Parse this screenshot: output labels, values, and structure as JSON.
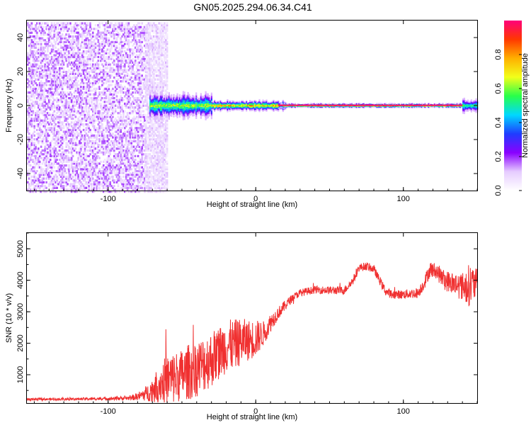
{
  "title": "GN05.2025.294.06.34.C41",
  "chart_data": [
    {
      "type": "heatmap",
      "xlabel": "Height of straight line (km)",
      "ylabel": "Frequency (Hz)",
      "xlim": [
        -155,
        150
      ],
      "ylim": [
        -50,
        50
      ],
      "x_ticks": [
        "-100",
        "0",
        "100"
      ],
      "y_ticks": [
        "-40",
        "-20",
        "0",
        "20",
        "40"
      ],
      "colorbar": {
        "label": "Normalized spectral amplitude",
        "range": [
          0,
          1
        ],
        "ticks": [
          "0.0",
          "0.2",
          "0.4",
          "0.6",
          "0.8"
        ],
        "colors": [
          "#ffffff",
          "#e6ccff",
          "#8a00ff",
          "#1f3cff",
          "#00d8ff",
          "#28ff4a",
          "#f2ff1a",
          "#ffb000",
          "#ff3800",
          "#ff007a"
        ]
      },
      "regions": [
        {
          "x_range": [
            -155,
            -75
          ],
          "description_value": "broadband noise",
          "peak_amplitude": 0.15
        },
        {
          "x_range": [
            -75,
            -60
          ],
          "description_value": "noise fading",
          "peak_amplitude": 0.08
        },
        {
          "x_range": [
            -72,
            -30
          ],
          "band_halfwidth_hz": 7,
          "peak_amplitude": 0.7
        },
        {
          "x_range": [
            -30,
            20
          ],
          "band_halfwidth_hz": 3,
          "peak_amplitude": 0.85
        },
        {
          "x_range": [
            15,
            140
          ],
          "band_halfwidth_hz": 1.2,
          "peak_amplitude": 0.98
        },
        {
          "x_range": [
            140,
            150
          ],
          "band_halfwidth_hz": 4,
          "peak_amplitude": 0.6
        }
      ]
    },
    {
      "type": "line",
      "xlabel": "Height of straight line (km)",
      "ylabel": "SNR (10 * v/v)",
      "xlim": [
        -155,
        150
      ],
      "ylim": [
        100,
        5500
      ],
      "x_ticks": [
        "-100",
        "0",
        "100"
      ],
      "y_ticks": [
        "1000",
        "2000",
        "3000",
        "4000",
        "5000"
      ],
      "series": [
        {
          "color": "#f03030",
          "x": [
            -155,
            -140,
            -120,
            -100,
            -85,
            -78,
            -72,
            -66,
            -60,
            -55,
            -50,
            -45,
            -40,
            -35,
            -30,
            -25,
            -20,
            -15,
            -10,
            -5,
            0,
            5,
            10,
            15,
            20,
            25,
            30,
            40,
            50,
            60,
            66,
            70,
            75,
            80,
            85,
            88,
            92,
            100,
            110,
            114,
            118,
            122,
            128,
            134,
            140,
            145,
            150
          ],
          "values": [
            220,
            220,
            230,
            240,
            260,
            330,
            450,
            700,
            850,
            900,
            1000,
            1100,
            1200,
            1350,
            1500,
            1700,
            1900,
            1950,
            2050,
            2100,
            2150,
            2300,
            2650,
            2950,
            3200,
            3450,
            3600,
            3700,
            3680,
            3680,
            4000,
            4400,
            4450,
            4350,
            3900,
            3650,
            3550,
            3550,
            3600,
            3900,
            4350,
            4300,
            4000,
            3900,
            3800,
            3850,
            3900
          ],
          "noise_amplitude": [
            40,
            40,
            40,
            50,
            70,
            150,
            300,
            550,
            800,
            850,
            800,
            900,
            900,
            900,
            900,
            850,
            850,
            800,
            750,
            650,
            600,
            400,
            300,
            200,
            170,
            120,
            120,
            120,
            130,
            130,
            130,
            130,
            130,
            130,
            140,
            140,
            140,
            140,
            170,
            200,
            250,
            250,
            320,
            380,
            450,
            700,
            450
          ]
        }
      ]
    }
  ]
}
